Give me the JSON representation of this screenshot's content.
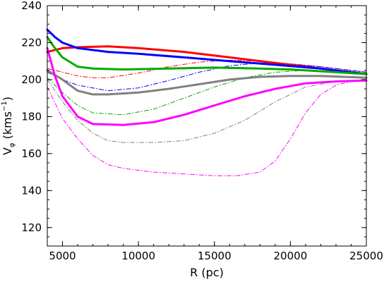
{
  "chart_data": {
    "type": "line",
    "title": "",
    "xlabel": "R (pc)",
    "ylabel_parts": {
      "main": "V",
      "sub": "φ",
      "unit_open": " (kms",
      "sup": "−1",
      "unit_close": ")"
    },
    "xlim": [
      4000,
      25000
    ],
    "ylim": [
      110,
      240
    ],
    "xticks": [
      5000,
      10000,
      15000,
      20000,
      25000
    ],
    "yticks": [
      120,
      140,
      160,
      180,
      200,
      220,
      240
    ],
    "grid": false,
    "series": [
      {
        "color": "#ff0000",
        "style": "solid",
        "width": 3,
        "points": [
          [
            4000,
            215
          ],
          [
            5000,
            217
          ],
          [
            6000,
            217.5
          ],
          [
            8000,
            218
          ],
          [
            10000,
            217
          ],
          [
            13000,
            215
          ],
          [
            16000,
            212
          ],
          [
            19000,
            209
          ],
          [
            22000,
            206
          ],
          [
            25000,
            203
          ]
        ]
      },
      {
        "color": "#0000ff",
        "style": "solid",
        "width": 3,
        "points": [
          [
            4000,
            227
          ],
          [
            4500,
            223
          ],
          [
            5000,
            220
          ],
          [
            6000,
            217
          ],
          [
            8000,
            215
          ],
          [
            10000,
            214
          ],
          [
            13000,
            212
          ],
          [
            16000,
            210
          ],
          [
            19000,
            208
          ],
          [
            22000,
            206
          ],
          [
            25000,
            203
          ]
        ]
      },
      {
        "color": "#00aa00",
        "style": "solid",
        "width": 3,
        "points": [
          [
            4000,
            223
          ],
          [
            4500,
            217
          ],
          [
            5000,
            212
          ],
          [
            6000,
            207
          ],
          [
            7000,
            206
          ],
          [
            9000,
            205.5
          ],
          [
            12000,
            206
          ],
          [
            15000,
            206.5
          ],
          [
            18000,
            206
          ],
          [
            20000,
            205.5
          ],
          [
            23000,
            204
          ],
          [
            25000,
            203
          ]
        ]
      },
      {
        "color": "#808080",
        "style": "solid",
        "width": 3,
        "points": [
          [
            4000,
            205
          ],
          [
            5000,
            200
          ],
          [
            6000,
            194
          ],
          [
            7000,
            192
          ],
          [
            8000,
            192
          ],
          [
            10000,
            193
          ],
          [
            12000,
            195
          ],
          [
            14000,
            197.5
          ],
          [
            16000,
            200
          ],
          [
            18000,
            201.5
          ],
          [
            20000,
            202
          ],
          [
            22000,
            202
          ],
          [
            25000,
            201
          ]
        ]
      },
      {
        "color": "#ff00ff",
        "style": "solid",
        "width": 3,
        "points": [
          [
            4000,
            217
          ],
          [
            4500,
            202
          ],
          [
            5000,
            191
          ],
          [
            6000,
            180
          ],
          [
            7000,
            176
          ],
          [
            9000,
            175.5
          ],
          [
            11000,
            177
          ],
          [
            13000,
            181
          ],
          [
            15000,
            186
          ],
          [
            17000,
            191
          ],
          [
            19000,
            195
          ],
          [
            21000,
            198
          ],
          [
            23000,
            199
          ],
          [
            25000,
            199.5
          ]
        ]
      },
      {
        "color": "#ff0000",
        "style": "dashdot",
        "width": 1,
        "points": [
          [
            4000,
            206
          ],
          [
            5000,
            204
          ],
          [
            6000,
            202
          ],
          [
            7000,
            201
          ],
          [
            8000,
            201
          ],
          [
            10000,
            203.5
          ],
          [
            12000,
            207
          ],
          [
            14000,
            209.5
          ],
          [
            16000,
            210.5
          ],
          [
            18000,
            210
          ],
          [
            20000,
            208.5
          ],
          [
            22000,
            207
          ],
          [
            25000,
            204
          ]
        ]
      },
      {
        "color": "#0000ff",
        "style": "dashdot",
        "width": 1,
        "points": [
          [
            4000,
            204
          ],
          [
            5000,
            200
          ],
          [
            6000,
            197
          ],
          [
            8000,
            194
          ],
          [
            10000,
            195.5
          ],
          [
            12000,
            199.5
          ],
          [
            14000,
            204
          ],
          [
            16000,
            207.5
          ],
          [
            18000,
            209
          ],
          [
            20000,
            208.5
          ],
          [
            22000,
            207
          ],
          [
            25000,
            204
          ]
        ]
      },
      {
        "color": "#00aa00",
        "style": "dashdot",
        "width": 1,
        "points": [
          [
            4000,
            201
          ],
          [
            5000,
            193
          ],
          [
            6000,
            186
          ],
          [
            7000,
            182
          ],
          [
            9000,
            181
          ],
          [
            11000,
            184
          ],
          [
            13000,
            190
          ],
          [
            15000,
            196
          ],
          [
            17000,
            201
          ],
          [
            19000,
            204
          ],
          [
            21000,
            205
          ],
          [
            23000,
            204
          ],
          [
            25000,
            203
          ]
        ]
      },
      {
        "color": "#808080",
        "style": "dashdot",
        "width": 1,
        "points": [
          [
            4000,
            200
          ],
          [
            5000,
            188
          ],
          [
            6000,
            178
          ],
          [
            7000,
            171
          ],
          [
            8000,
            167
          ],
          [
            9000,
            166
          ],
          [
            11000,
            166
          ],
          [
            13000,
            167
          ],
          [
            15000,
            171
          ],
          [
            17000,
            178
          ],
          [
            19000,
            188
          ],
          [
            21000,
            196
          ],
          [
            23000,
            199
          ],
          [
            25000,
            200
          ]
        ]
      },
      {
        "color": "#ff00ff",
        "style": "dashdot",
        "width": 1,
        "points": [
          [
            4000,
            196
          ],
          [
            5000,
            179
          ],
          [
            6000,
            168
          ],
          [
            7000,
            159
          ],
          [
            8000,
            154
          ],
          [
            9000,
            152
          ],
          [
            11000,
            150
          ],
          [
            13000,
            149
          ],
          [
            15000,
            148
          ],
          [
            16500,
            148
          ],
          [
            18000,
            150
          ],
          [
            19000,
            156
          ],
          [
            20000,
            168
          ],
          [
            21000,
            182
          ],
          [
            22000,
            192
          ],
          [
            23000,
            197
          ],
          [
            24000,
            199
          ],
          [
            25000,
            200
          ]
        ]
      }
    ]
  }
}
